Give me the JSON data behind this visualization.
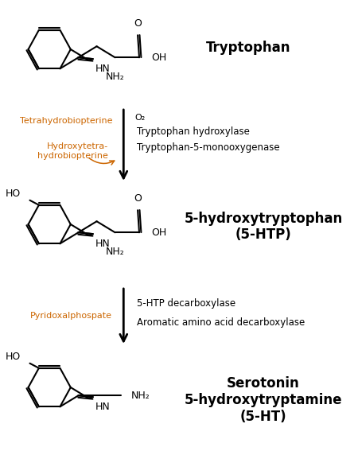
{
  "background_color": "#ffffff",
  "text_color": "#000000",
  "orange_color": "#cc6600",
  "molecule1_name": "Tryptophan",
  "molecule2_name": "5-hydroxytryptophan\n(5-HTP)",
  "molecule3_name": "Serotonin\n5-hydroxytryptamine\n(5-HT)",
  "enzyme1_line1": "Tryptophan hydroxylase",
  "enzyme1_line2": "Tryptophan-5-monooxygenase",
  "enzyme2_line1": "5-HTP decarboxylase",
  "enzyme2_line2": "Aromatic amino acid decarboxylase",
  "cofactor1_top": "O₂",
  "cofactor1_left1": "Tetrahydrobiopterine",
  "cofactor1_left2": "Hydroxytetra-\nhydrobiopterine",
  "cofactor2_left": "Pyridoxalphospate"
}
